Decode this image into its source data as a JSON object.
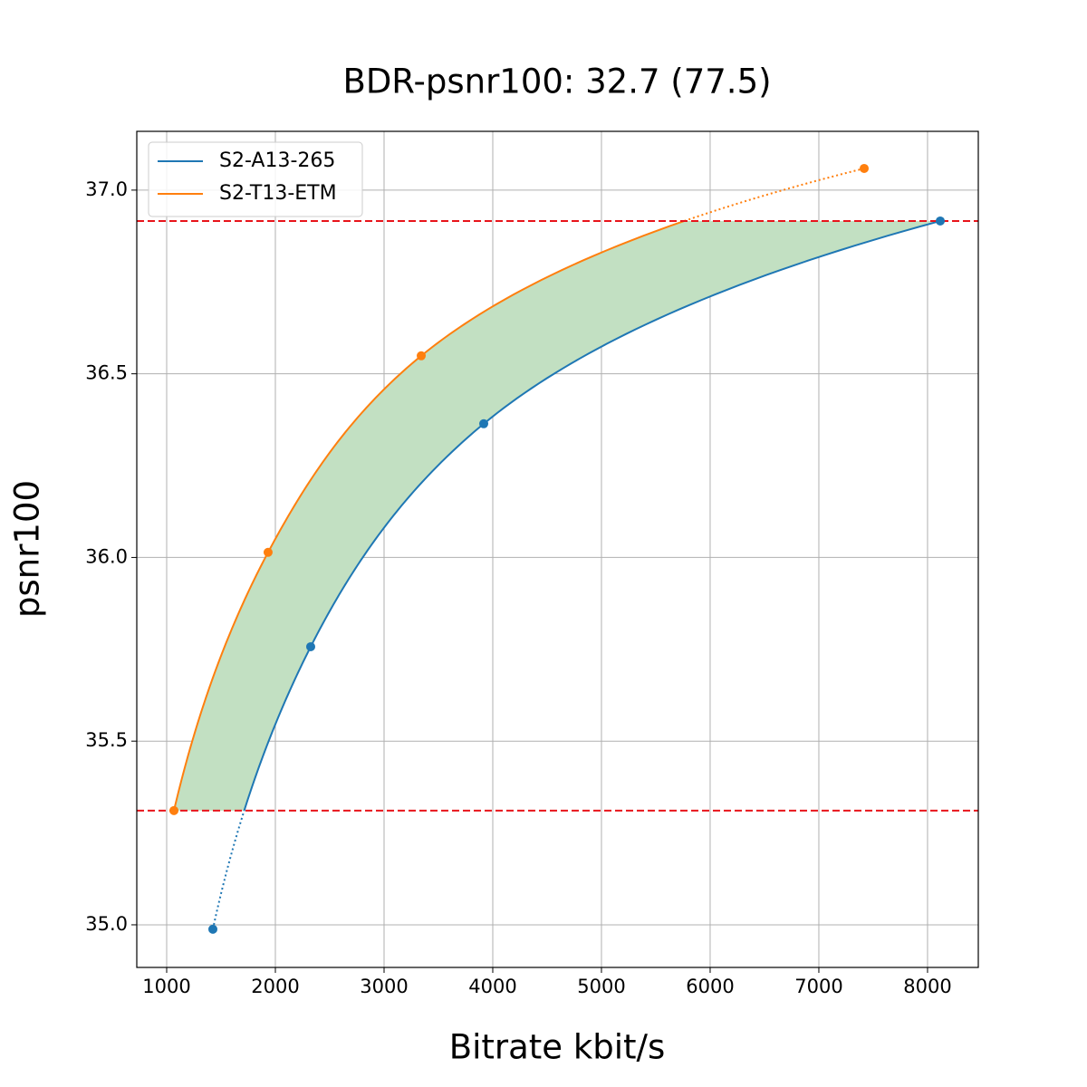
{
  "chart_data": {
    "type": "line",
    "title": "BDR-psnr100: 32.7 (77.5)",
    "x_label": "Bitrate kbit/s",
    "y_label": "psnr100",
    "series": [
      {
        "name": "S2-A13-265",
        "color": "#1f77b4",
        "x": [
          1425,
          2325,
          3917,
          8117
        ],
        "values": [
          34.988,
          35.757,
          36.364,
          36.916
        ]
      },
      {
        "name": "S2-T13-ETM",
        "color": "#ff7f0e",
        "x": [
          1067,
          1933,
          3342,
          7417
        ],
        "values": [
          35.311,
          36.014,
          36.549,
          37.059
        ]
      }
    ],
    "xlim": [
      725,
      8467
    ],
    "ylim": [
      34.884,
      37.16
    ],
    "xticks": [
      1000,
      2000,
      3000,
      4000,
      5000,
      6000,
      7000,
      8000
    ],
    "yticks": [
      {
        "value": 35,
        "label": "35.0"
      },
      {
        "value": 35.5,
        "label": "35.5"
      },
      {
        "value": 36,
        "label": "36.0"
      },
      {
        "value": 36.5,
        "label": "36.5"
      },
      {
        "value": 37,
        "label": "37.0"
      }
    ],
    "grid": true,
    "legend": "upper left",
    "fill_color": "#c2e0c2",
    "threshold_color": "#e8141b"
  }
}
